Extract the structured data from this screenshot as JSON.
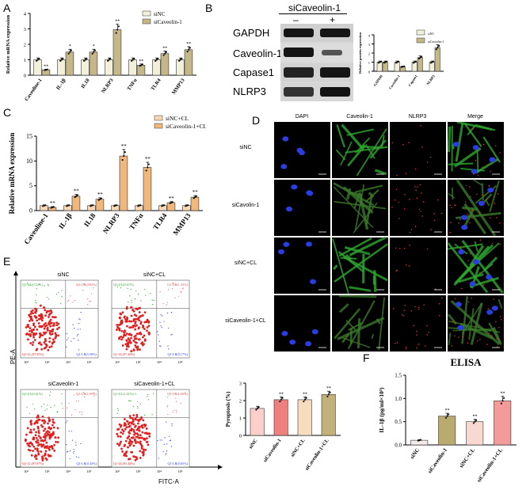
{
  "colors": {
    "siNC": "#f2f0d9",
    "siCaveolin": "#c4b888",
    "siNC_CL": "#f9d9b3",
    "siCaveolin_CL": "#f2b77a",
    "pyro": [
      "#fbd0cb",
      "#ef8080",
      "#f8dcc0",
      "#c2b27a"
    ],
    "elisa": [
      "#f4eaea",
      "#b9aa70",
      "#f9d8d2",
      "#f39a9a"
    ]
  },
  "panelA": {
    "letter": "A",
    "ylabel": "Relative mRNA expression",
    "legend": [
      "siNC",
      "siCaveolin-1"
    ],
    "chart_data": {
      "type": "bar",
      "categories": [
        "Caveoline-1",
        "IL-1β",
        "IL18",
        "NLRP3",
        "TNFα",
        "TLR4",
        "MMP13"
      ],
      "series": [
        {
          "name": "siNC",
          "values": [
            1.0,
            1.0,
            1.0,
            1.0,
            1.0,
            1.0,
            1.0
          ]
        },
        {
          "name": "siCaveolin-1",
          "values": [
            0.35,
            1.5,
            1.5,
            2.95,
            0.65,
            1.4,
            1.65
          ]
        }
      ],
      "ylim": [
        0,
        4
      ],
      "yticks": [
        "0",
        "1",
        "2",
        "3",
        "4"
      ],
      "sig": [
        "**",
        "*",
        "*",
        "**",
        "**",
        "**",
        "**"
      ]
    }
  },
  "panelB": {
    "letter": "B",
    "header": "siCaveolin-1",
    "lanes": [
      "–",
      "+"
    ],
    "blots": [
      "GAPDH",
      "Caveolin-1",
      "Capase1",
      "NLRP3"
    ],
    "ylabel": "Relative protein expression",
    "legend": [
      "siNC",
      "siCaveolin-1"
    ],
    "chart_data": {
      "type": "bar",
      "categories": [
        "GAPDH",
        "Caveolin-1",
        "Capase1",
        "NLRP3"
      ],
      "series": [
        {
          "name": "siNC",
          "values": [
            1.0,
            1.0,
            1.0,
            1.0
          ]
        },
        {
          "name": "siCaveolin-1",
          "values": [
            1.0,
            0.5,
            1.5,
            2.6
          ]
        }
      ],
      "ylim": [
        0,
        4
      ],
      "yticks": [
        "0",
        "1",
        "2",
        "3",
        "4"
      ]
    }
  },
  "panelC": {
    "letter": "C",
    "ylabel": "Relative mRNA expression",
    "legend": [
      "siNC+CL",
      "siCaveolin-1+CL"
    ],
    "chart_data": {
      "type": "bar",
      "categories": [
        "Caveoline-1",
        "IL-1β",
        "IL18",
        "NLRP3",
        "TNFα",
        "TLR4",
        "MMP13"
      ],
      "series": [
        {
          "name": "siNC+CL",
          "values": [
            1.0,
            1.0,
            1.0,
            1.0,
            1.0,
            1.0,
            1.0
          ]
        },
        {
          "name": "siCaveolin-1+CL",
          "values": [
            0.65,
            2.9,
            2.3,
            11.0,
            8.7,
            1.6,
            2.7
          ]
        }
      ],
      "ylim": [
        0,
        15
      ],
      "yticks": [
        "0",
        "5",
        "10",
        "15"
      ],
      "sig": [
        "**",
        "**",
        "**",
        "**",
        "**",
        "**",
        "**"
      ]
    }
  },
  "panelD": {
    "letter": "D",
    "columns": [
      "DAPI",
      "Caveolin-1",
      "NLRP3",
      "Merge"
    ],
    "rows": [
      "siNC",
      "siCavolin-1",
      "siNC+CL",
      "siCaveolin-1+CL"
    ]
  },
  "panelE": {
    "letter": "E",
    "ylabel": "PE-A",
    "xlabel": "FITC-A",
    "plots": [
      {
        "title": "siNC",
        "q": [
          "Q1-UL(0.52%)",
          "Q1-UR(2.93%)",
          "Q1-LL(97.95%)",
          "Q1-LR(5.58%)"
        ]
      },
      {
        "title": "siNC+CL",
        "q": [
          "Q1-UL(0.67%)",
          "Q1-UR(1.43%)",
          "Q1-LL(97.40%)",
          "Q1-LR(9.17%)"
        ]
      },
      {
        "title": "siCaveolin-1",
        "q": [
          "Q1-UL(0.61%)",
          "Q1-UR(1.09%)",
          "Q1-LL(97.87%)",
          "Q1-LR(0.43%)"
        ]
      },
      {
        "title": "siCaveolin-1+CL",
        "q": [
          "Q1-UL(1.01%)",
          "Q1-UR(1.60%)",
          "Q1-LL(93.44%)",
          "Q1-LR(0.65%)"
        ]
      }
    ],
    "axis_ticks": [
      "10²",
      "10³",
      "10⁴",
      "10⁵"
    ],
    "pyro": {
      "ylabel": "Pyroptosis (%)",
      "chart_data": {
        "type": "bar",
        "categories": [
          "siNC",
          "siCaveolin-1",
          "siNC+CL",
          "siCaveolin-1+CL"
        ],
        "values": [
          1.55,
          2.05,
          2.05,
          2.35
        ],
        "ylim": [
          0,
          3
        ],
        "yticks": [
          "0",
          "1",
          "2",
          "3"
        ],
        "sig": [
          "",
          "**",
          "**",
          "**"
        ]
      }
    }
  },
  "panelF": {
    "letter": "F",
    "title": "ELISA",
    "ylabel": "IL-1β (pg/ml×10³)",
    "chart_data": {
      "type": "bar",
      "categories": [
        "siNC",
        "siCaveolin-1",
        "siNC+CL",
        "siCaveolin-1+CL"
      ],
      "values": [
        0.1,
        0.62,
        0.5,
        0.95
      ],
      "ylim": [
        0,
        1.5
      ],
      "yticks": [
        "0.0",
        "0.5",
        "1.0",
        "1.5"
      ],
      "sig": [
        "",
        "**",
        "**",
        "**"
      ]
    }
  }
}
